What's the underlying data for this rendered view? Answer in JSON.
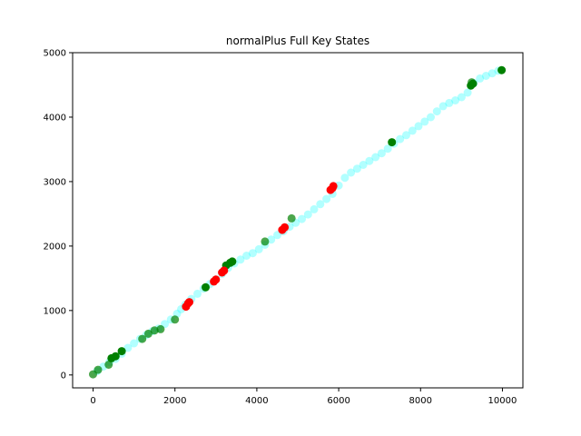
{
  "chart_data": {
    "type": "scatter",
    "title": "normalPlus Full Key States",
    "xlabel": "",
    "ylabel": "",
    "xlim": [
      -500,
      10500
    ],
    "ylim": [
      -200,
      5000
    ],
    "xticks": [
      0,
      2000,
      4000,
      6000,
      8000,
      10000
    ],
    "yticks": [
      0,
      1000,
      2000,
      3000,
      4000,
      5000
    ],
    "grid": false,
    "legend": "none",
    "colors": {
      "cyan_series": "#00ffff",
      "green_series": "#008000",
      "red_series": "#ff0000"
    },
    "series": [
      {
        "color": "#00ffff",
        "opacity": 0.3,
        "x": [
          100,
          250,
          400,
          550,
          700,
          850,
          1000,
          1150,
          1300,
          1450,
          1600,
          1750,
          1900,
          2050,
          2150,
          2250,
          2400,
          2550,
          2700,
          2850,
          3000,
          3150,
          3300,
          3450,
          3600,
          3750,
          3900,
          4050,
          4200,
          4350,
          4500,
          4650,
          4800,
          4950,
          5100,
          5250,
          5400,
          5550,
          5700,
          5850,
          6000,
          6150,
          6300,
          6450,
          6600,
          6750,
          6900,
          7050,
          7200,
          7350,
          7500,
          7650,
          7800,
          7950,
          8100,
          8250,
          8400,
          8550,
          8700,
          8850,
          9000,
          9150,
          9300,
          9450,
          9600,
          9750,
          9900
        ],
        "y": [
          60,
          130,
          200,
          250,
          330,
          420,
          490,
          560,
          620,
          680,
          720,
          790,
          860,
          950,
          1020,
          1090,
          1180,
          1260,
          1340,
          1410,
          1480,
          1570,
          1660,
          1730,
          1790,
          1850,
          1890,
          1950,
          2020,
          2100,
          2170,
          2230,
          2300,
          2360,
          2420,
          2490,
          2570,
          2650,
          2730,
          2810,
          2940,
          3060,
          3140,
          3200,
          3260,
          3320,
          3380,
          3440,
          3510,
          3590,
          3660,
          3720,
          3790,
          3860,
          3930,
          4000,
          4090,
          4170,
          4220,
          4260,
          4310,
          4380,
          4530,
          4600,
          4640,
          4680,
          4720
        ]
      },
      {
        "color": "#008000",
        "opacity": 0.7,
        "x": [
          0,
          120,
          380,
          1200,
          1350,
          1500,
          1650,
          2000,
          4200,
          4850,
          9250
        ],
        "y": [
          10,
          80,
          160,
          560,
          640,
          690,
          710,
          860,
          2070,
          2430,
          4540
        ]
      },
      {
        "color": "#008000",
        "opacity": 1.0,
        "x": [
          450,
          550,
          700,
          2750,
          3250,
          3350,
          3400,
          7300,
          9230,
          9280,
          9980
        ],
        "y": [
          260,
          290,
          370,
          1360,
          1700,
          1740,
          1760,
          3610,
          4490,
          4520,
          4730
        ]
      },
      {
        "color": "#ff0000",
        "opacity": 1.0,
        "x": [
          2270,
          2320,
          2350,
          2950,
          3000,
          3150,
          3200,
          4620,
          4680,
          5800,
          5850,
          5870
        ],
        "y": [
          1060,
          1110,
          1130,
          1450,
          1480,
          1590,
          1620,
          2250,
          2290,
          2870,
          2900,
          2930
        ]
      }
    ]
  }
}
